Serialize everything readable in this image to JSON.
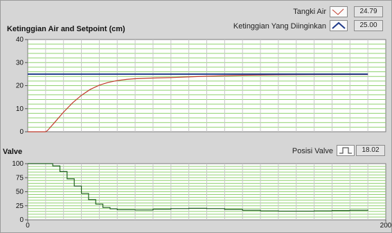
{
  "chart_data": [
    {
      "type": "line",
      "title": "Ketinggian Air and Setpoint (cm)",
      "xlabel": "",
      "ylabel": "",
      "xlim": [
        0,
        200
      ],
      "ylim": [
        0,
        40
      ],
      "y_ticks": [
        "0",
        "10",
        "20",
        "30",
        "40"
      ],
      "grid": true,
      "legend_placement": "top-right",
      "series": [
        {
          "name": "Tangki Air",
          "color": "#c0392b",
          "current_value": "24.79",
          "x": [
            0,
            6,
            10,
            11,
            15,
            20,
            25,
            30,
            35,
            40,
            45,
            50,
            55,
            60,
            70,
            80,
            90,
            100,
            120,
            140,
            160,
            180,
            190
          ],
          "y": [
            0,
            0,
            0,
            0.5,
            4,
            8.5,
            12.5,
            15.8,
            18.4,
            20.2,
            21.4,
            22.2,
            22.7,
            23.0,
            23.3,
            23.5,
            23.8,
            24.1,
            24.5,
            24.7,
            24.75,
            24.8,
            24.8
          ]
        },
        {
          "name": "Ketinggian Yang Diinginkan",
          "color": "#1f3a8a",
          "current_value": "25.00",
          "x": [
            0,
            190
          ],
          "y": [
            25,
            25
          ]
        }
      ]
    },
    {
      "type": "line",
      "title": "Valve",
      "xlabel": "",
      "ylabel": "",
      "xlim": [
        0,
        200
      ],
      "ylim": [
        0,
        100
      ],
      "x_ticks": [
        "0",
        "200"
      ],
      "y_ticks": [
        "0",
        "25",
        "50",
        "75",
        "100"
      ],
      "grid": true,
      "legend_placement": "top-right",
      "series": [
        {
          "name": "Posisi Valve",
          "color": "#1f5e1f",
          "current_value": "18.02",
          "x": [
            0,
            10,
            14,
            18,
            22,
            26,
            30,
            34,
            38,
            42,
            46,
            50,
            60,
            70,
            80,
            90,
            100,
            110,
            120,
            130,
            140,
            150,
            160,
            170,
            180,
            190
          ],
          "y": [
            100,
            100,
            96,
            86,
            73,
            60,
            47,
            36,
            28,
            22,
            19.5,
            18,
            17.5,
            19,
            20,
            20.5,
            20,
            18.5,
            17,
            16,
            15.5,
            15.5,
            16,
            16.5,
            17,
            18
          ]
        }
      ]
    }
  ]
}
